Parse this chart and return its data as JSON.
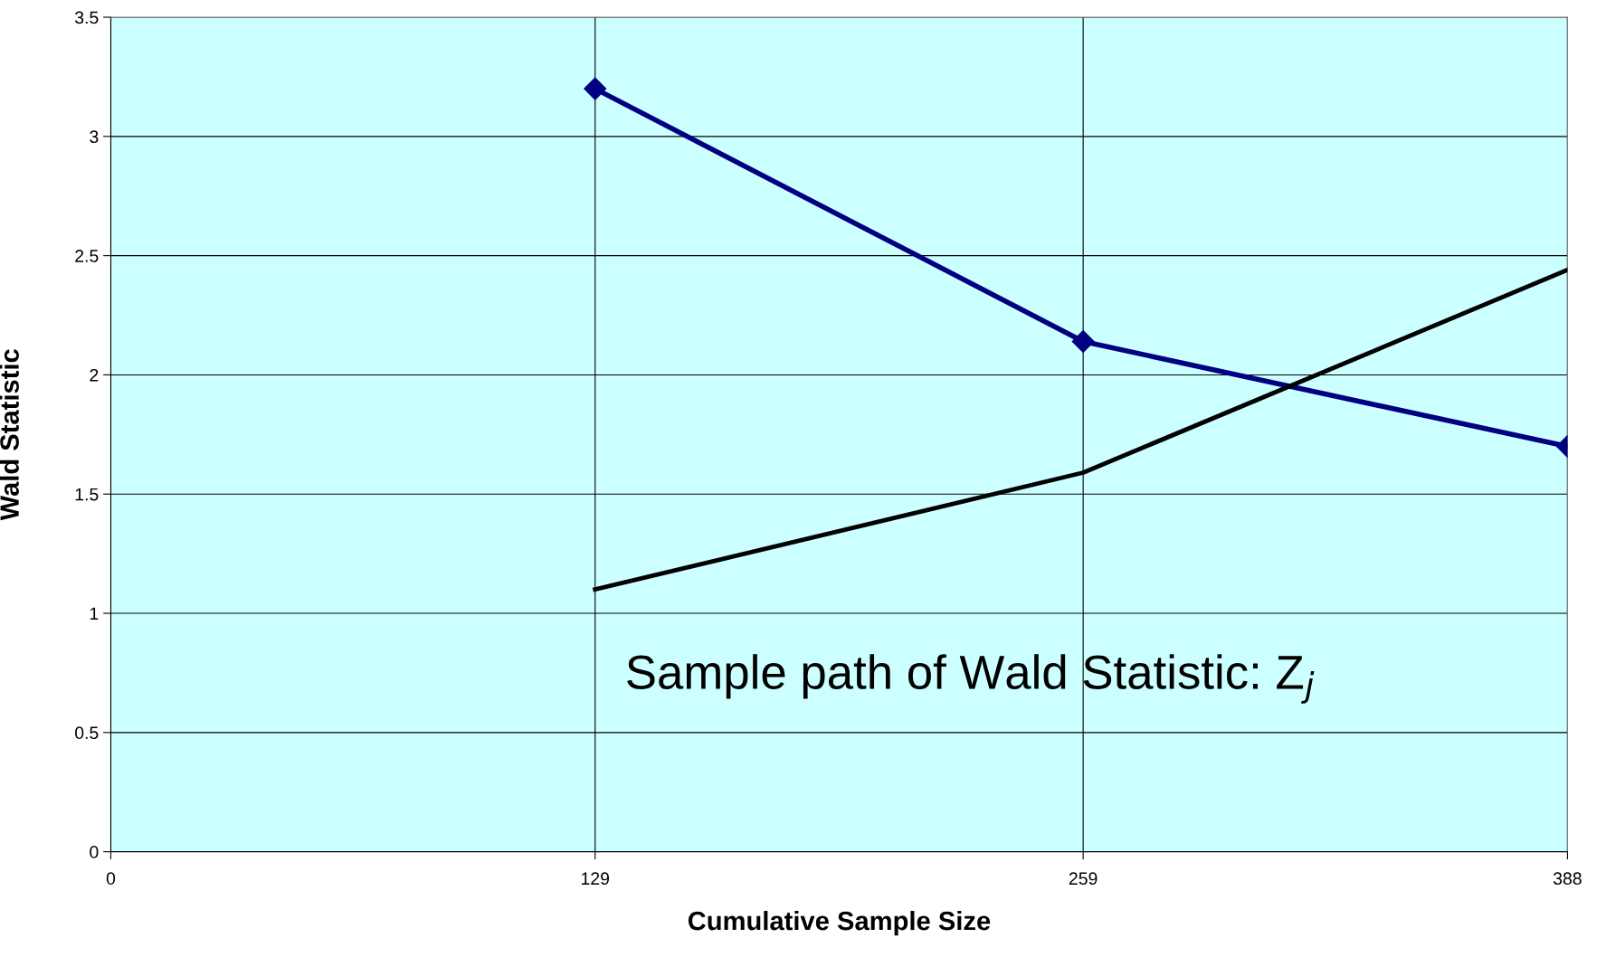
{
  "chart_data": {
    "type": "line",
    "xlabel": "Cumulative Sample Size",
    "ylabel": "Wald Statistic",
    "x": [
      129,
      259,
      388
    ],
    "series": [
      {
        "color": "#000080",
        "values": [
          3.2,
          2.14,
          1.7
        ],
        "marker": "diamond"
      },
      {
        "color": "#000000",
        "values": [
          1.1,
          1.59,
          2.44
        ],
        "marker": "none"
      }
    ],
    "xlim": [
      0,
      388
    ],
    "xticks": [
      0,
      129,
      259,
      388
    ],
    "ylim": [
      0,
      3.5
    ],
    "yticks": [
      0,
      0.5,
      1,
      1.5,
      2,
      2.5,
      3,
      3.5
    ],
    "grid": true,
    "legend": false,
    "annotations": [
      "Sample path of Wald Statistic: Z$_{j}$"
    ]
  }
}
